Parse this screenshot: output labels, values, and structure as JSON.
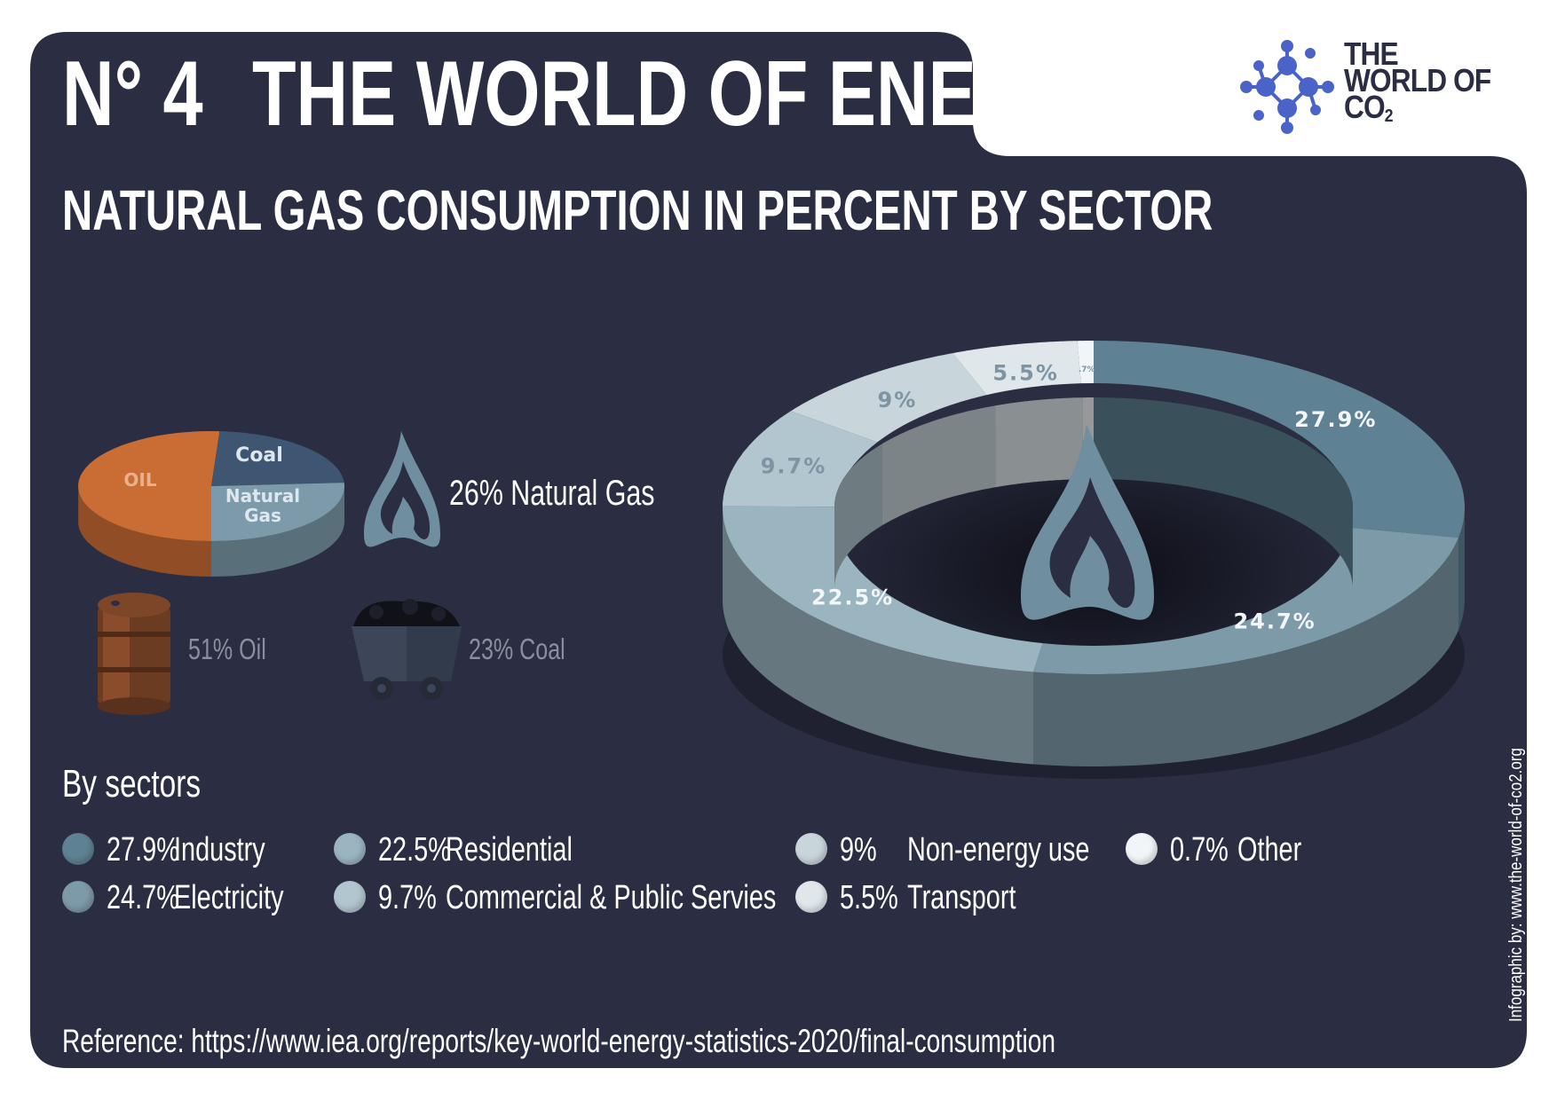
{
  "header": {
    "number": "N° 4",
    "title": "THE WORLD OF ENERGY",
    "subtitle": "NATURAL GAS CONSUMPTION IN PERCENT BY SECTOR"
  },
  "logo": {
    "line1": "THE",
    "line2": "WORLD OF",
    "line3": "CO",
    "line3_sub": "2"
  },
  "energy_mix": {
    "pie_labels": {
      "oil": "OIL",
      "coal": "Coal",
      "gas_line1": "Natural",
      "gas_line2": "Gas"
    },
    "natural_gas_label": "26% Natural Gas",
    "oil_label": "51% Oil",
    "coal_label": "23% Coal"
  },
  "sectors_title": "By sectors",
  "legend": [
    {
      "value": "27.9%",
      "label": "Industry",
      "color": "#5e8293"
    },
    {
      "value": "24.7%",
      "label": "Electricity",
      "color": "#7d9aa8"
    },
    {
      "value": "22.5%",
      "label": "Residential",
      "color": "#9ab4c0"
    },
    {
      "value": "9.7%",
      "label": "Commercial & Public Servies",
      "color": "#b2c6cf"
    },
    {
      "value": "9%",
      "label": "Non-energy use",
      "color": "#c8d5db"
    },
    {
      "value": "5.5%",
      "label": "Transport",
      "color": "#dfe7eb"
    },
    {
      "value": "0.7%",
      "label": "Other",
      "color": "#f2f5f7"
    }
  ],
  "reference": "Reference: https://www.iea.org/reports/key-world-energy-statistics-2020/final-consumption",
  "credit": "Infographic by: www.the-world-of-co2.org",
  "colors": {
    "panel": "#2b2d42",
    "oil": "#c96d35",
    "coal": "#3e5671",
    "natural_gas": "#7c9aaa",
    "flame": "#6f8e9f"
  },
  "chart_data": [
    {
      "type": "pie",
      "labels": [
        "OIL",
        "Coal",
        "Natural Gas"
      ],
      "values": [
        51,
        23,
        26
      ],
      "colors": [
        "#c96d35",
        "#3e5671",
        "#7c9aaa"
      ]
    },
    {
      "type": "pie",
      "title": "NATURAL GAS CONSUMPTION IN PERCENT BY SECTOR",
      "style": "donut",
      "labels": [
        "Industry",
        "Electricity",
        "Residential",
        "Commercial & Public Servies",
        "Non-energy use",
        "Transport",
        "Other"
      ],
      "values": [
        27.9,
        24.7,
        22.5,
        9.7,
        9,
        5.5,
        0.7
      ],
      "slice_labels": [
        "27.9%",
        "24.7%",
        "22.5%",
        "9.7%",
        "9%",
        "5.5%",
        ".7%"
      ],
      "colors": [
        "#5e8293",
        "#7d9aa8",
        "#9ab4c0",
        "#b2c6cf",
        "#c8d5db",
        "#dfe7eb",
        "#f2f5f7"
      ]
    }
  ]
}
